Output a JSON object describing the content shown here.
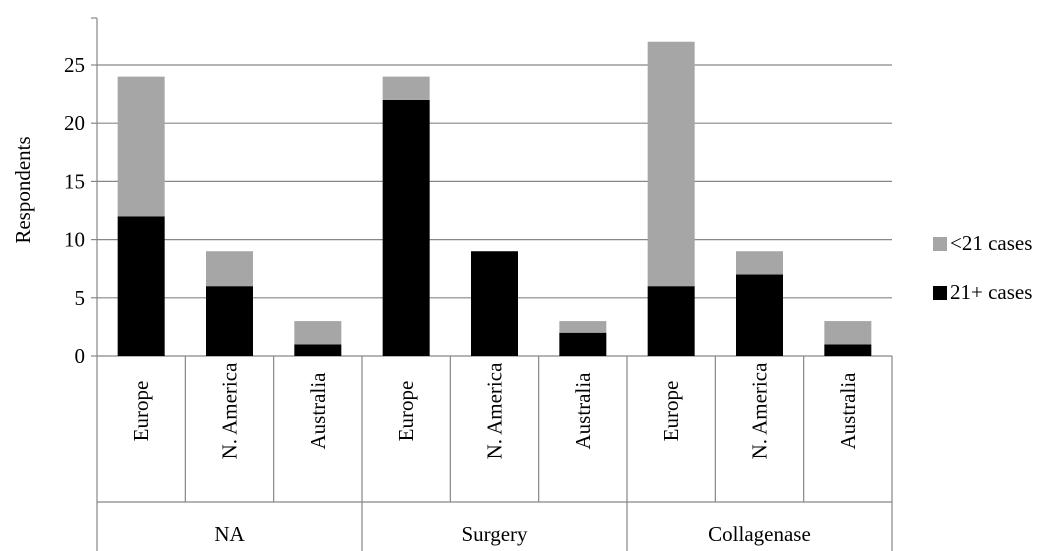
{
  "chart_data": {
    "type": "bar",
    "stacked": true,
    "ylabel": "Respondents",
    "ylim": [
      0,
      30
    ],
    "yticks": [
      0,
      5,
      10,
      15,
      20,
      25
    ],
    "grid": true,
    "legend_position": "right",
    "groups": [
      {
        "label": "NA",
        "categories": [
          "Europe",
          "N. America",
          "Australia"
        ]
      },
      {
        "label": "Surgery",
        "categories": [
          "Europe",
          "N. America",
          "Australia"
        ]
      },
      {
        "label": "Collagenase",
        "categories": [
          "Europe",
          "N. America",
          "Australia"
        ]
      }
    ],
    "series": [
      {
        "name": "21+ cases",
        "color": "#000000",
        "values": [
          12,
          6,
          1,
          22,
          9,
          2,
          6,
          7,
          1
        ]
      },
      {
        "name": "<21 cases",
        "color": "#a6a6a6",
        "values": [
          12,
          3,
          2,
          2,
          0,
          1,
          21,
          2,
          2
        ]
      }
    ],
    "legend_order": [
      "<21 cases",
      "21+ cases"
    ]
  }
}
